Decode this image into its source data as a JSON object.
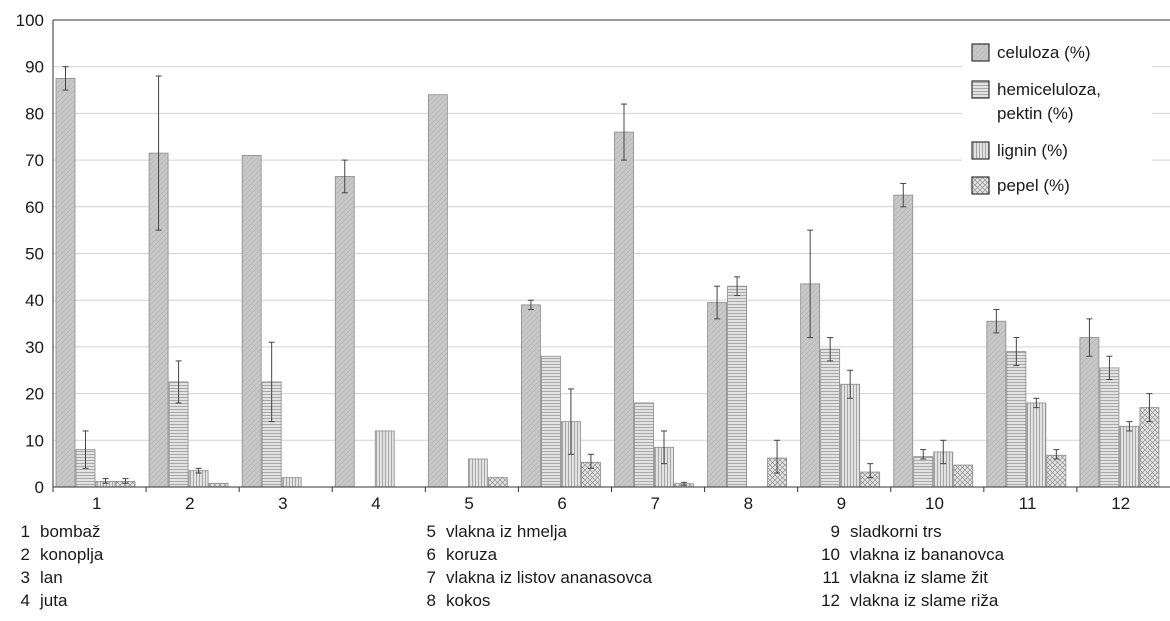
{
  "chart_data": {
    "type": "bar",
    "title": "",
    "xlabel": "",
    "ylabel": "",
    "ylim": [
      0,
      100
    ],
    "yticks": [
      0,
      10,
      20,
      30,
      40,
      50,
      60,
      70,
      80,
      90,
      100
    ],
    "grid": "horizontal",
    "legend_position": "top-right",
    "categories": [
      "1",
      "2",
      "3",
      "4",
      "5",
      "6",
      "7",
      "8",
      "9",
      "10",
      "11",
      "12"
    ],
    "series": [
      {
        "name": "celuloza (%)",
        "pattern": "diagonal",
        "values": [
          87.5,
          71.5,
          71,
          66.5,
          84,
          39,
          76,
          39.5,
          43.5,
          62.5,
          35.5,
          32
        ],
        "errors": [
          [
            85,
            90
          ],
          [
            55,
            88
          ],
          [
            null,
            null
          ],
          [
            63,
            70
          ],
          [
            null,
            null
          ],
          [
            38,
            40
          ],
          [
            70,
            82
          ],
          [
            36,
            43
          ],
          [
            32,
            55
          ],
          [
            60,
            65
          ],
          [
            33,
            38
          ],
          [
            28,
            36
          ]
        ]
      },
      {
        "name": "hemiceluloza, pektin (%)",
        "pattern": "horizontal",
        "values": [
          8,
          22.5,
          22.5,
          0,
          0,
          28,
          18,
          43,
          29.5,
          6.5,
          29,
          25.5
        ],
        "errors": [
          [
            4,
            12
          ],
          [
            18,
            27
          ],
          [
            14,
            31
          ],
          [
            null,
            null
          ],
          [
            null,
            null
          ],
          [
            null,
            null
          ],
          [
            null,
            null
          ],
          [
            41,
            45
          ],
          [
            27,
            32
          ],
          [
            6,
            8
          ],
          [
            26,
            32
          ],
          [
            23,
            28
          ]
        ]
      },
      {
        "name": "lignin (%)",
        "pattern": "vertical",
        "values": [
          1.2,
          3.5,
          2,
          12,
          6,
          14,
          8.5,
          0,
          22,
          7.5,
          18,
          13
        ],
        "errors": [
          [
            0.8,
            1.8
          ],
          [
            3,
            4
          ],
          [
            null,
            null
          ],
          [
            null,
            null
          ],
          [
            null,
            null
          ],
          [
            7,
            21
          ],
          [
            5,
            12
          ],
          [
            null,
            null
          ],
          [
            19,
            25
          ],
          [
            5,
            10
          ],
          [
            17,
            19
          ],
          [
            12,
            14
          ]
        ]
      },
      {
        "name": "pepel (%)",
        "pattern": "crosshatch",
        "values": [
          1.2,
          0.8,
          0,
          0,
          2,
          5.3,
          0.7,
          6.2,
          3.2,
          4.7,
          6.8,
          17
        ],
        "errors": [
          [
            0.8,
            1.8
          ],
          [
            null,
            null
          ],
          [
            null,
            null
          ],
          [
            null,
            null
          ],
          [
            null,
            null
          ],
          [
            4,
            7
          ],
          [
            0.4,
            1
          ],
          [
            3,
            10
          ],
          [
            2,
            5
          ],
          [
            null,
            null
          ],
          [
            6,
            8
          ],
          [
            14,
            20
          ]
        ]
      }
    ],
    "legend_lines": [
      [
        "celuloza (%)"
      ],
      [
        "hemiceluloza,",
        "pektin (%)"
      ],
      [
        "lignin (%)"
      ],
      [
        "pepel (%)"
      ]
    ],
    "key": [
      {
        "num": "1",
        "label": "bombaž"
      },
      {
        "num": "2",
        "label": "konoplja"
      },
      {
        "num": "3",
        "label": "lan"
      },
      {
        "num": "4",
        "label": "juta"
      },
      {
        "num": "5",
        "label": "vlakna iz hmelja"
      },
      {
        "num": "6",
        "label": "koruza"
      },
      {
        "num": "7",
        "label": "vlakna iz listov ananasovca"
      },
      {
        "num": "8",
        "label": "kokos"
      },
      {
        "num": "9",
        "label": "sladkorni trs"
      },
      {
        "num": "10",
        "label": "vlakna iz bananovca"
      },
      {
        "num": "11",
        "label": "vlakna iz slame žit"
      },
      {
        "num": "12",
        "label": "vlakna iz slame riža"
      }
    ],
    "colors": {
      "bar_fill": "#c8c8c8",
      "bar_stroke": "#8a8a8a",
      "grid": "#d2d2d2",
      "axis": "#333333",
      "text": "#1a1a1a"
    }
  }
}
